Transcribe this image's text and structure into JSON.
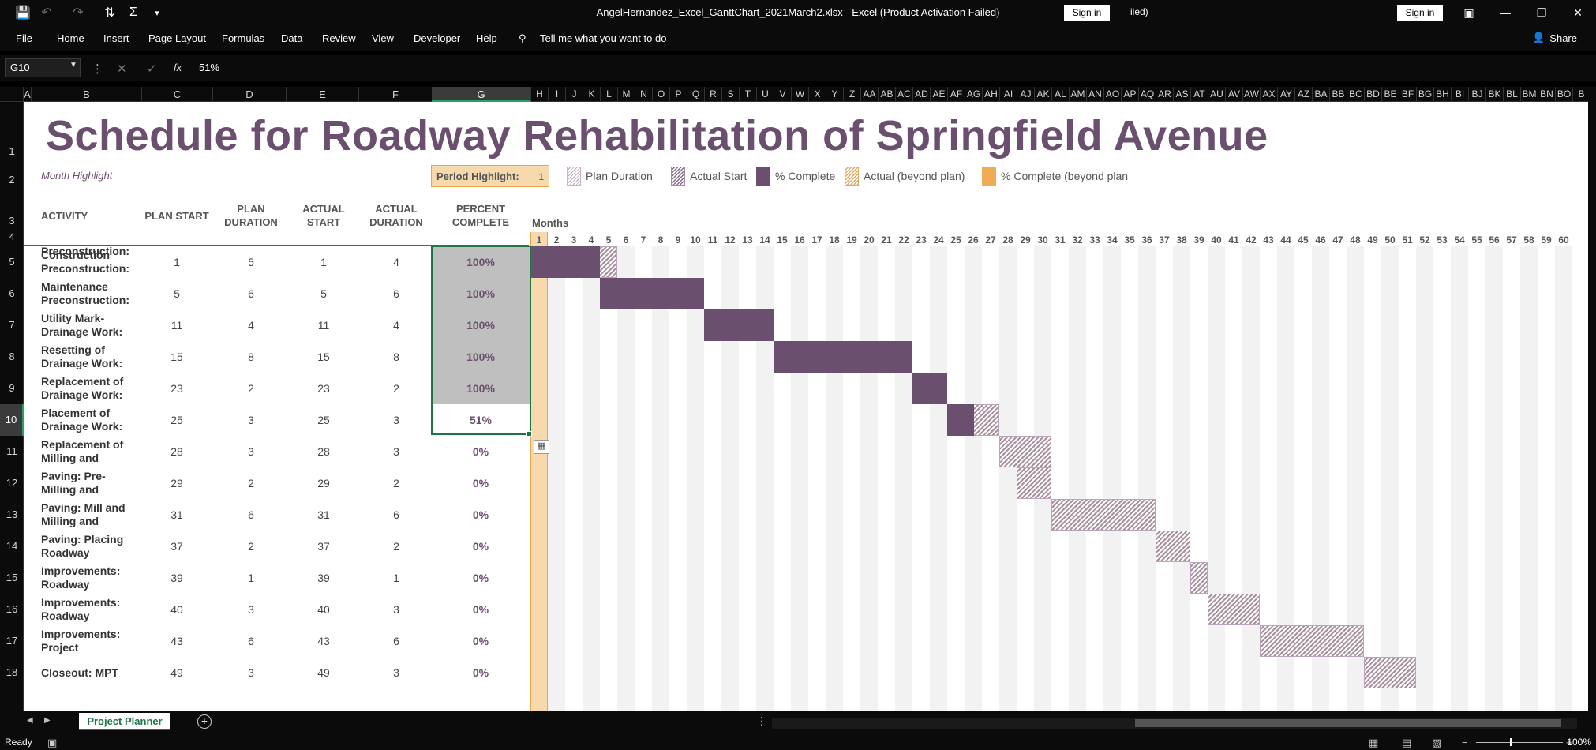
{
  "app": {
    "window_title": "AngelHernandez_Excel_GanttChart_2021March2.xlsx  -  Excel (Product Activation Failed)",
    "signin_label": "Sign in",
    "led_text": "iled)"
  },
  "menu": [
    "File",
    "Home",
    "Insert",
    "Page Layout",
    "Formulas",
    "Data",
    "Review",
    "View",
    "Developer",
    "Help"
  ],
  "tell_me": "Tell me what you want to do",
  "share_label": "Share",
  "formula_bar": {
    "name_box": "G10",
    "fx": "fx",
    "value": "51%"
  },
  "columns_left": [
    "A",
    "B",
    "C",
    "D",
    "E",
    "F",
    "G"
  ],
  "columns_right": [
    "H",
    "I",
    "J",
    "K",
    "L",
    "M",
    "N",
    "O",
    "P",
    "Q",
    "R",
    "S",
    "T",
    "U",
    "V",
    "W",
    "X",
    "Y",
    "Z",
    "AA",
    "AB",
    "AC",
    "AD",
    "AE",
    "AF",
    "AG",
    "AH",
    "AI",
    "AJ",
    "AK",
    "AL",
    "AM",
    "AN",
    "AO",
    "AP",
    "AQ",
    "AR",
    "AS",
    "AT",
    "AU",
    "AV",
    "AW",
    "AX",
    "AY",
    "AZ",
    "BA",
    "BB",
    "BC",
    "BD",
    "BE",
    "BF",
    "BG",
    "BH",
    "BI",
    "BJ",
    "BK",
    "BL",
    "BM",
    "BN",
    "BO",
    "B"
  ],
  "rows": [
    "1",
    "2",
    "3",
    "4",
    "5",
    "6",
    "7",
    "8",
    "9",
    "10",
    "11",
    "12",
    "13",
    "14",
    "15",
    "16",
    "17",
    "18"
  ],
  "sheet": {
    "title": "Schedule for Roadway Rehabilitation of Springfield Avenue",
    "month_highlight": "Month Highlight",
    "period_label": "Period Highlight:",
    "period_value": "1",
    "legend": {
      "plan": "Plan Duration",
      "actual": "Actual Start",
      "complete": "% Complete",
      "beyond": "Actual (beyond plan)",
      "complete_beyond": "% Complete (beyond plan"
    },
    "headers": {
      "activity": "ACTIVITY",
      "plan_start": "PLAN START",
      "plan_duration_1": "PLAN",
      "plan_duration_2": "DURATION",
      "actual_start_1": "ACTUAL",
      "actual_start_2": "START",
      "actual_duration_1": "ACTUAL",
      "actual_duration_2": "DURATION",
      "percent_1": "PERCENT",
      "percent_2": "COMPLETE",
      "months": "Months"
    },
    "month_numbers": [
      "1",
      "2",
      "3",
      "4",
      "5",
      "6",
      "7",
      "8",
      "9",
      "10",
      "11",
      "12",
      "13",
      "14",
      "15",
      "16",
      "17",
      "18",
      "19",
      "20",
      "21",
      "22",
      "23",
      "24",
      "25",
      "26",
      "27",
      "28",
      "29",
      "30",
      "31",
      "32",
      "33",
      "34",
      "35",
      "36",
      "37",
      "38",
      "39",
      "40",
      "41",
      "42",
      "43",
      "44",
      "45",
      "46",
      "47",
      "48",
      "49",
      "50",
      "51",
      "52",
      "53",
      "54",
      "55",
      "56",
      "57",
      "58",
      "59",
      "60"
    ],
    "row4_label": "Preconstruction:",
    "activities": [
      {
        "line1": "Construction",
        "line2": "Preconstruction:",
        "plan_start": 1,
        "plan_duration": 5,
        "actual_start": 1,
        "actual_duration": 4,
        "percent": "100%",
        "pct_value": 100
      },
      {
        "line1": "Maintenance",
        "line2": "Preconstruction:",
        "plan_start": 5,
        "plan_duration": 6,
        "actual_start": 5,
        "actual_duration": 6,
        "percent": "100%",
        "pct_value": 100
      },
      {
        "line1": "Utility Mark-",
        "line2": "Drainage Work:",
        "plan_start": 11,
        "plan_duration": 4,
        "actual_start": 11,
        "actual_duration": 4,
        "percent": "100%",
        "pct_value": 100
      },
      {
        "line1": "Resetting of",
        "line2": "Drainage Work:",
        "plan_start": 15,
        "plan_duration": 8,
        "actual_start": 15,
        "actual_duration": 8,
        "percent": "100%",
        "pct_value": 100
      },
      {
        "line1": "Replacement of",
        "line2": "Drainage Work:",
        "plan_start": 23,
        "plan_duration": 2,
        "actual_start": 23,
        "actual_duration": 2,
        "percent": "100%",
        "pct_value": 100
      },
      {
        "line1": "Placement of",
        "line2": "Drainage Work:",
        "plan_start": 25,
        "plan_duration": 3,
        "actual_start": 25,
        "actual_duration": 3,
        "percent": "51%",
        "pct_value": 51
      },
      {
        "line1": "Replacement of",
        "line2": "Milling and",
        "plan_start": 28,
        "plan_duration": 3,
        "actual_start": 28,
        "actual_duration": 3,
        "percent": "0%",
        "pct_value": 0
      },
      {
        "line1": "Paving: Pre-",
        "line2": "Milling and",
        "plan_start": 29,
        "plan_duration": 2,
        "actual_start": 29,
        "actual_duration": 2,
        "percent": "0%",
        "pct_value": 0
      },
      {
        "line1": "Paving: Mill and",
        "line2": "Milling and",
        "plan_start": 31,
        "plan_duration": 6,
        "actual_start": 31,
        "actual_duration": 6,
        "percent": "0%",
        "pct_value": 0
      },
      {
        "line1": "Paving: Placing",
        "line2": "Roadway",
        "plan_start": 37,
        "plan_duration": 2,
        "actual_start": 37,
        "actual_duration": 2,
        "percent": "0%",
        "pct_value": 0
      },
      {
        "line1": "Improvements:",
        "line2": "Roadway",
        "plan_start": 39,
        "plan_duration": 1,
        "actual_start": 39,
        "actual_duration": 1,
        "percent": "0%",
        "pct_value": 0
      },
      {
        "line1": "Improvements:",
        "line2": "Roadway",
        "plan_start": 40,
        "plan_duration": 3,
        "actual_start": 40,
        "actual_duration": 3,
        "percent": "0%",
        "pct_value": 0
      },
      {
        "line1": "Improvements:",
        "line2": "Project",
        "plan_start": 43,
        "plan_duration": 6,
        "actual_start": 43,
        "actual_duration": 6,
        "percent": "0%",
        "pct_value": 0
      },
      {
        "line1": "Closeout: MPT",
        "line2": "",
        "plan_start": 49,
        "plan_duration": 3,
        "actual_start": 49,
        "actual_duration": 3,
        "percent": "0%",
        "pct_value": 0
      }
    ],
    "colors": {
      "primary": "#6b4f6e",
      "highlight": "#f7d9ae",
      "accent": "#efab55",
      "selection": "#217346"
    }
  },
  "sheet_tab": "Project Planner",
  "status": {
    "ready": "Ready",
    "zoom": "100%"
  }
}
